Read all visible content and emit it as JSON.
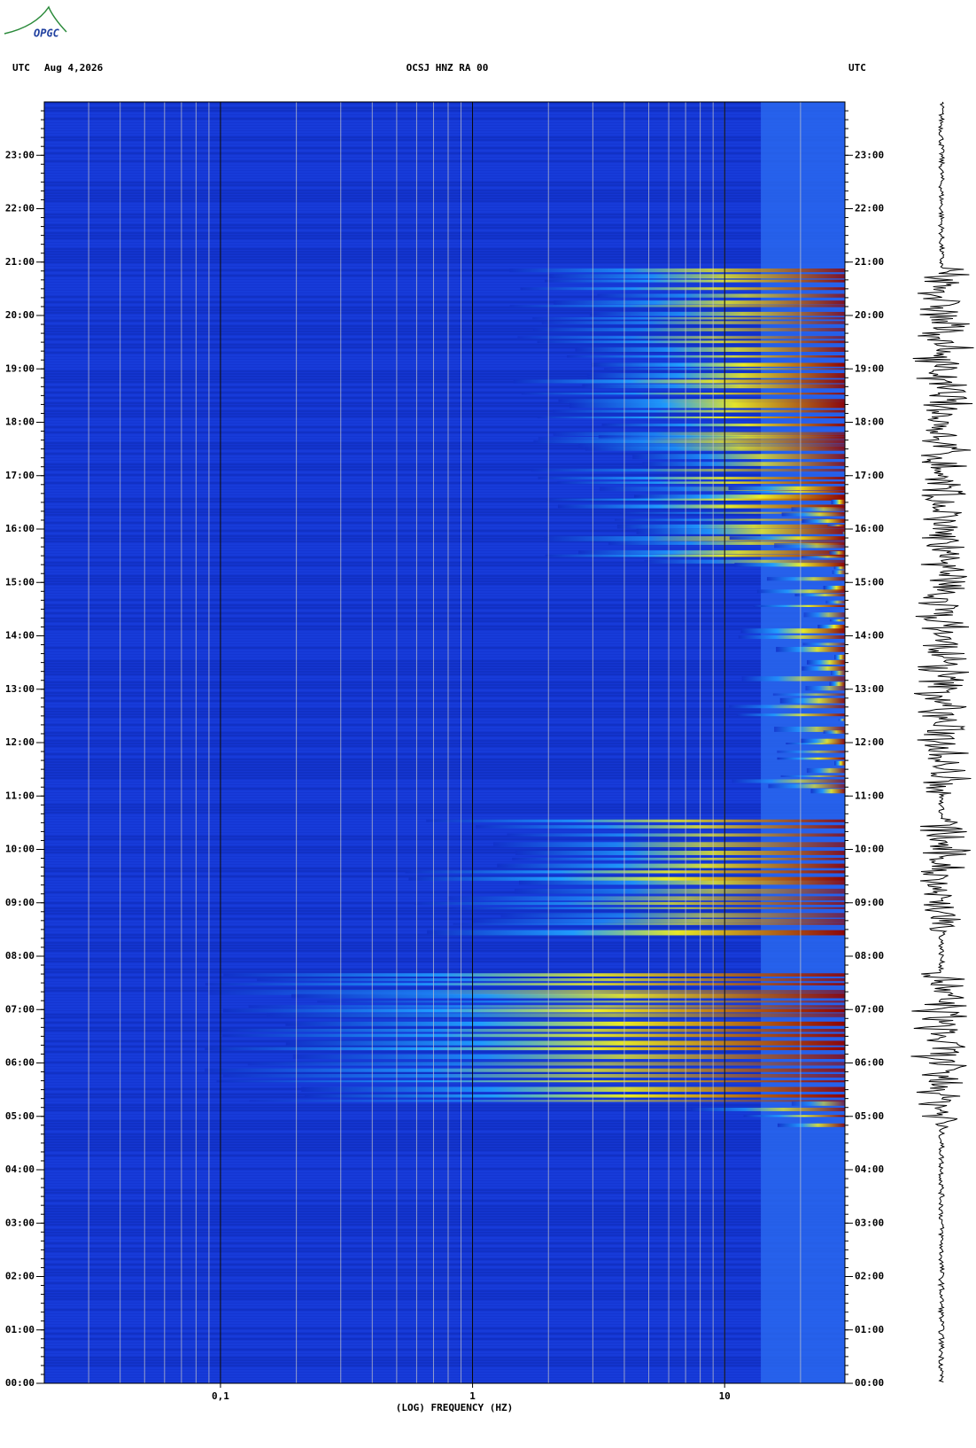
{
  "logo": "OPGC",
  "chart_data": {
    "type": "spectrogram",
    "title": "OCSJ HNZ RA 00",
    "date": "Aug 4,2026",
    "left_label": "UTC",
    "right_label": "UTC",
    "x_label": "(LOG) FREQUENCY (HZ)",
    "xlim": [
      0.02,
      30
    ],
    "xscale": "log",
    "xticks": [
      {
        "value": 0.1,
        "label": "0,1"
      },
      1,
      10
    ],
    "ylim": [
      0,
      24
    ],
    "yticks": [
      {
        "value": 0,
        "label": "00:00"
      },
      {
        "value": 1,
        "label": "01:00"
      },
      {
        "value": 2,
        "label": "02:00"
      },
      {
        "value": 3,
        "label": "03:00"
      },
      {
        "value": 4,
        "label": "04:00"
      },
      {
        "value": 5,
        "label": "05:00"
      },
      {
        "value": 6,
        "label": "06:00"
      },
      {
        "value": 7,
        "label": "07:00"
      },
      {
        "value": 8,
        "label": "08:00"
      },
      {
        "value": 9,
        "label": "09:00"
      },
      {
        "value": 10,
        "label": "10:00"
      },
      {
        "value": 11,
        "label": "11:00"
      },
      {
        "value": 12,
        "label": "12:00"
      },
      {
        "value": 13,
        "label": "13:00"
      },
      {
        "value": 14,
        "label": "14:00"
      },
      {
        "value": 15,
        "label": "15:00"
      },
      {
        "value": 16,
        "label": "16:00"
      },
      {
        "value": 17,
        "label": "17:00"
      },
      {
        "value": 18,
        "label": "18:00"
      },
      {
        "value": 19,
        "label": "19:00"
      },
      {
        "value": 20,
        "label": "20:00"
      },
      {
        "value": 21,
        "label": "21:00"
      },
      {
        "value": 22,
        "label": "22:00"
      },
      {
        "value": 23,
        "label": "23:00"
      }
    ]
  }
}
